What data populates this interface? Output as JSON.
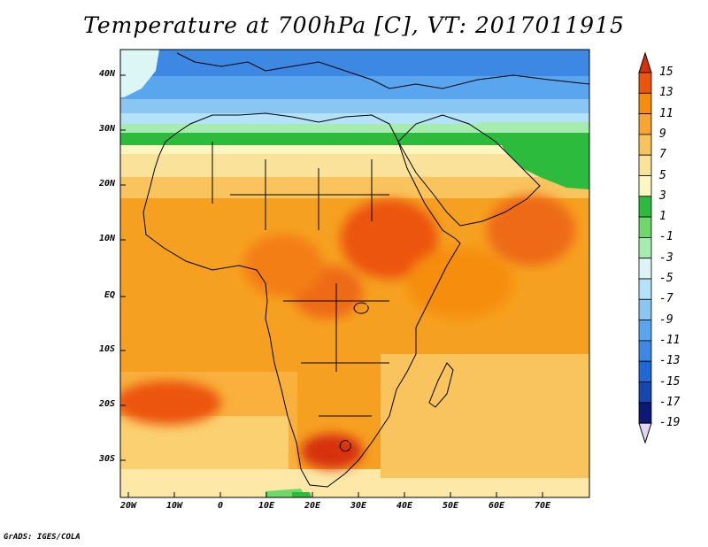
{
  "title": "Temperature at 700hPa [C], VT: 2017011915",
  "footer": "GrADS: IGES/COLA",
  "axes": {
    "lat_ticks": [
      "40N",
      "30N",
      "20N",
      "10N",
      "EQ",
      "10S",
      "20S",
      "30S"
    ],
    "lon_ticks": [
      "20W",
      "10W",
      "0",
      "10E",
      "20E",
      "30E",
      "40E",
      "50E",
      "60E",
      "70E"
    ]
  },
  "colorbar": {
    "labels": [
      "15",
      "13",
      "11",
      "9",
      "7",
      "5",
      "3",
      "1",
      "-1",
      "-3",
      "-5",
      "-7",
      "-9",
      "-11",
      "-13",
      "-15",
      "-17",
      "-19"
    ],
    "colors": [
      "#d7300a",
      "#ec5510",
      "#f68d10",
      "#f9a530",
      "#f9c45e",
      "#fbe29a",
      "#fdf6c0",
      "#2dbb3e",
      "#6fd86a",
      "#a6ecb0",
      "#dcf6f6",
      "#b4e2f8",
      "#8ac6f4",
      "#5aa6ee",
      "#3c88e2",
      "#2066d4",
      "#1646b0",
      "#0c1a74",
      "#e2d8f6"
    ]
  },
  "map": {
    "region": "Africa",
    "bg_color": "#f59f18",
    "land_color": "#f39528"
  }
}
